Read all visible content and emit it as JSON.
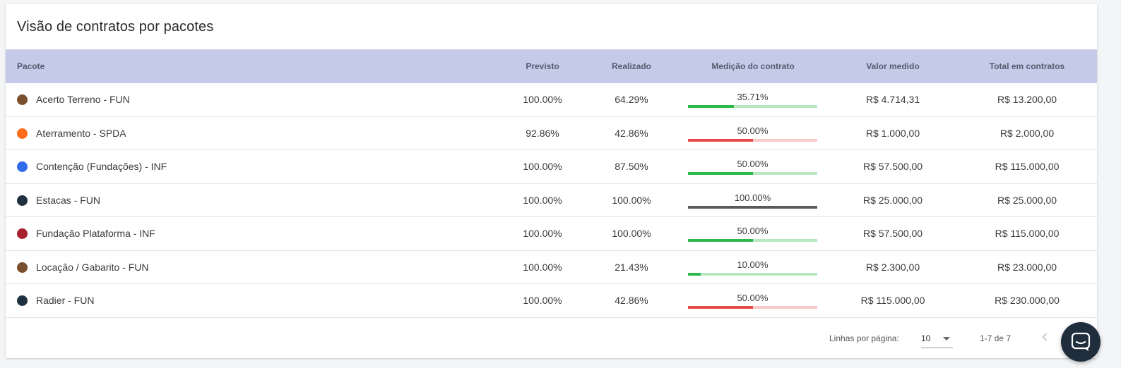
{
  "card": {
    "title": "Visão de contratos por pacotes"
  },
  "table": {
    "headers": {
      "pacote": "Pacote",
      "previsto": "Previsto",
      "realizado": "Realizado",
      "medicao": "Medição do contrato",
      "valor": "Valor medido",
      "total": "Total em contratos"
    },
    "rows": [
      {
        "name": "Acerto Terreno - FUN",
        "dot_color": "#7b4f2c",
        "previsto": "100.00%",
        "realizado": "64.29%",
        "medicao": "35.71%",
        "medicao_value": 35.71,
        "bar_color": "#2eb84b",
        "bar_bg": "#b8e8c2",
        "valor": "R$ 4.714,31",
        "total": "R$ 13.200,00"
      },
      {
        "name": "Aterramento - SPDA",
        "dot_color": "#ff6d1a",
        "previsto": "92.86%",
        "realizado": "42.86%",
        "medicao": "50.00%",
        "medicao_value": 50,
        "bar_color": "#e84a4a",
        "bar_bg": "#f8c9c9",
        "valor": "R$ 1.000,00",
        "total": "R$ 2.000,00"
      },
      {
        "name": "Contenção (Fundações) - INF",
        "dot_color": "#2f6bea",
        "previsto": "100.00%",
        "realizado": "87.50%",
        "medicao": "50.00%",
        "medicao_value": 50,
        "bar_color": "#2eb84b",
        "bar_bg": "#b8e8c2",
        "valor": "R$ 57.500,00",
        "total": "R$ 115.000,00"
      },
      {
        "name": "Estacas - FUN",
        "dot_color": "#1f3040",
        "previsto": "100.00%",
        "realizado": "100.00%",
        "medicao": "100.00%",
        "medicao_value": 100,
        "bar_color": "#5a5a5a",
        "bar_bg": "#cccccc",
        "valor": "R$ 25.000,00",
        "total": "R$ 25.000,00"
      },
      {
        "name": "Fundação Plataforma - INF",
        "dot_color": "#a8202e",
        "previsto": "100.00%",
        "realizado": "100.00%",
        "medicao": "50.00%",
        "medicao_value": 50,
        "bar_color": "#2eb84b",
        "bar_bg": "#b8e8c2",
        "valor": "R$ 57.500,00",
        "total": "R$ 115.000,00"
      },
      {
        "name": "Locação / Gabarito - FUN",
        "dot_color": "#7b4f2c",
        "previsto": "100.00%",
        "realizado": "21.43%",
        "medicao": "10.00%",
        "medicao_value": 10,
        "bar_color": "#2eb84b",
        "bar_bg": "#b8e8c2",
        "valor": "R$ 2.300,00",
        "total": "R$ 23.000,00"
      },
      {
        "name": "Radier - FUN",
        "dot_color": "#1f3040",
        "previsto": "100.00%",
        "realizado": "42.86%",
        "medicao": "50.00%",
        "medicao_value": 50,
        "bar_color": "#e84a4a",
        "bar_bg": "#f8c9c9",
        "valor": "R$ 115.000,00",
        "total": "R$ 230.000,00"
      }
    ]
  },
  "pagination": {
    "rows_per_page_label": "Linhas por página:",
    "rows_per_page_value": "10",
    "range": "1-7 de 7"
  },
  "icons": {
    "prev": "chevron-left-icon",
    "chat": "chat-bubble-icon"
  }
}
